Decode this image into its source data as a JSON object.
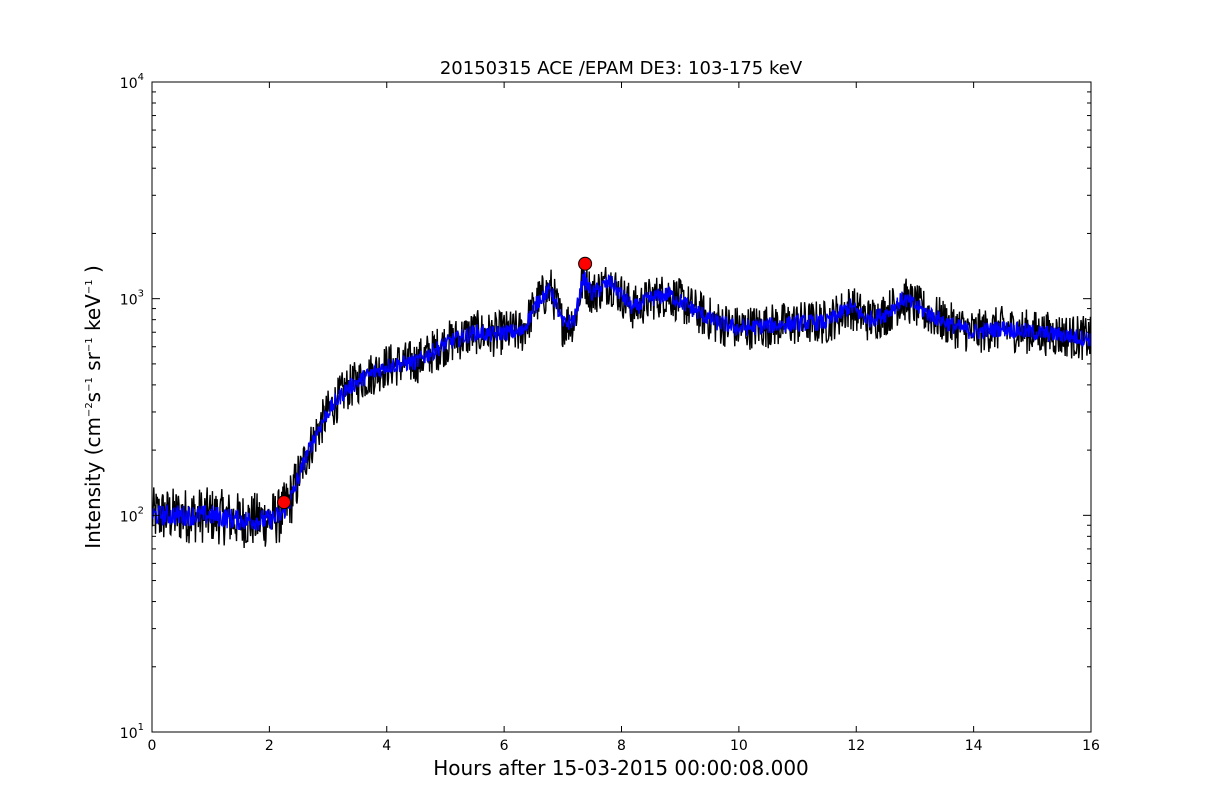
{
  "chart_data": {
    "type": "line",
    "title": "20150315 ACE /EPAM DE3: 103-175 keV",
    "xlabel": "Hours after 15-03-2015 00:00:08.000",
    "ylabel": {
      "prefix": "Intensity (cm",
      "exp1": "−2",
      "mid1": "s",
      "exp2": "−1",
      "mid2": "sr",
      "exp3": "−1",
      "mid3": "keV",
      "exp4": "−1",
      "suffix": ")"
    },
    "xlim": [
      0,
      16
    ],
    "ylim": [
      10,
      10000
    ],
    "yscale": "log",
    "grid": false,
    "x_ticks": [
      "0",
      "2",
      "4",
      "6",
      "8",
      "10",
      "12",
      "14",
      "16"
    ],
    "y_ticks": [
      {
        "base": "10",
        "exp": "1"
      },
      {
        "base": "10",
        "exp": "2"
      },
      {
        "base": "10",
        "exp": "3"
      },
      {
        "base": "10",
        "exp": "4"
      }
    ],
    "series": [
      {
        "kind": "raw",
        "color": "#000000",
        "x": [
          0,
          0.5,
          1.0,
          1.5,
          2.0,
          2.2,
          2.4,
          2.6,
          2.8,
          3.0,
          3.3,
          3.6,
          4.0,
          4.5,
          5.0,
          5.5,
          5.8,
          6.0,
          6.3,
          6.6,
          6.8,
          7.0,
          7.2,
          7.35,
          7.5,
          7.8,
          8.2,
          8.5,
          8.8,
          9.2,
          9.6,
          10.0,
          10.5,
          11.0,
          11.5,
          11.9,
          12.2,
          12.5,
          12.8,
          13.2,
          13.6,
          14.0,
          14.5,
          15.0,
          15.5,
          16.0
        ],
        "y": [
          100,
          100,
          100,
          95,
          95,
          100,
          125,
          180,
          240,
          300,
          380,
          430,
          490,
          510,
          620,
          700,
          680,
          700,
          700,
          1000,
          1100,
          760,
          800,
          1250,
          1050,
          1200,
          900,
          1000,
          1050,
          900,
          780,
          730,
          750,
          770,
          780,
          920,
          800,
          850,
          1000,
          860,
          760,
          700,
          730,
          700,
          680,
          650
        ],
        "noise": 0.24
      },
      {
        "kind": "smoothed",
        "color": "#0000ff",
        "x": [
          0,
          0.5,
          1.0,
          1.5,
          2.0,
          2.2,
          2.4,
          2.6,
          2.8,
          3.0,
          3.3,
          3.6,
          4.0,
          4.5,
          5.0,
          5.5,
          5.8,
          6.0,
          6.3,
          6.6,
          6.8,
          7.0,
          7.2,
          7.35,
          7.5,
          7.8,
          8.2,
          8.5,
          8.8,
          9.2,
          9.6,
          10.0,
          10.5,
          11.0,
          11.5,
          11.9,
          12.2,
          12.5,
          12.8,
          13.2,
          13.6,
          14.0,
          14.5,
          15.0,
          15.5,
          16.0
        ],
        "y": [
          100,
          100,
          100,
          95,
          95,
          100,
          125,
          180,
          240,
          300,
          380,
          430,
          490,
          510,
          620,
          700,
          680,
          700,
          700,
          1000,
          1100,
          760,
          800,
          1250,
          1050,
          1200,
          900,
          1000,
          1050,
          900,
          780,
          730,
          750,
          770,
          780,
          920,
          800,
          850,
          1000,
          860,
          760,
          700,
          730,
          700,
          680,
          650
        ],
        "noise": 0.09
      }
    ],
    "markers": [
      {
        "x": 2.25,
        "y": 115,
        "color": "#ff0000"
      },
      {
        "x": 7.38,
        "y": 1450,
        "color": "#ff0000"
      }
    ]
  }
}
